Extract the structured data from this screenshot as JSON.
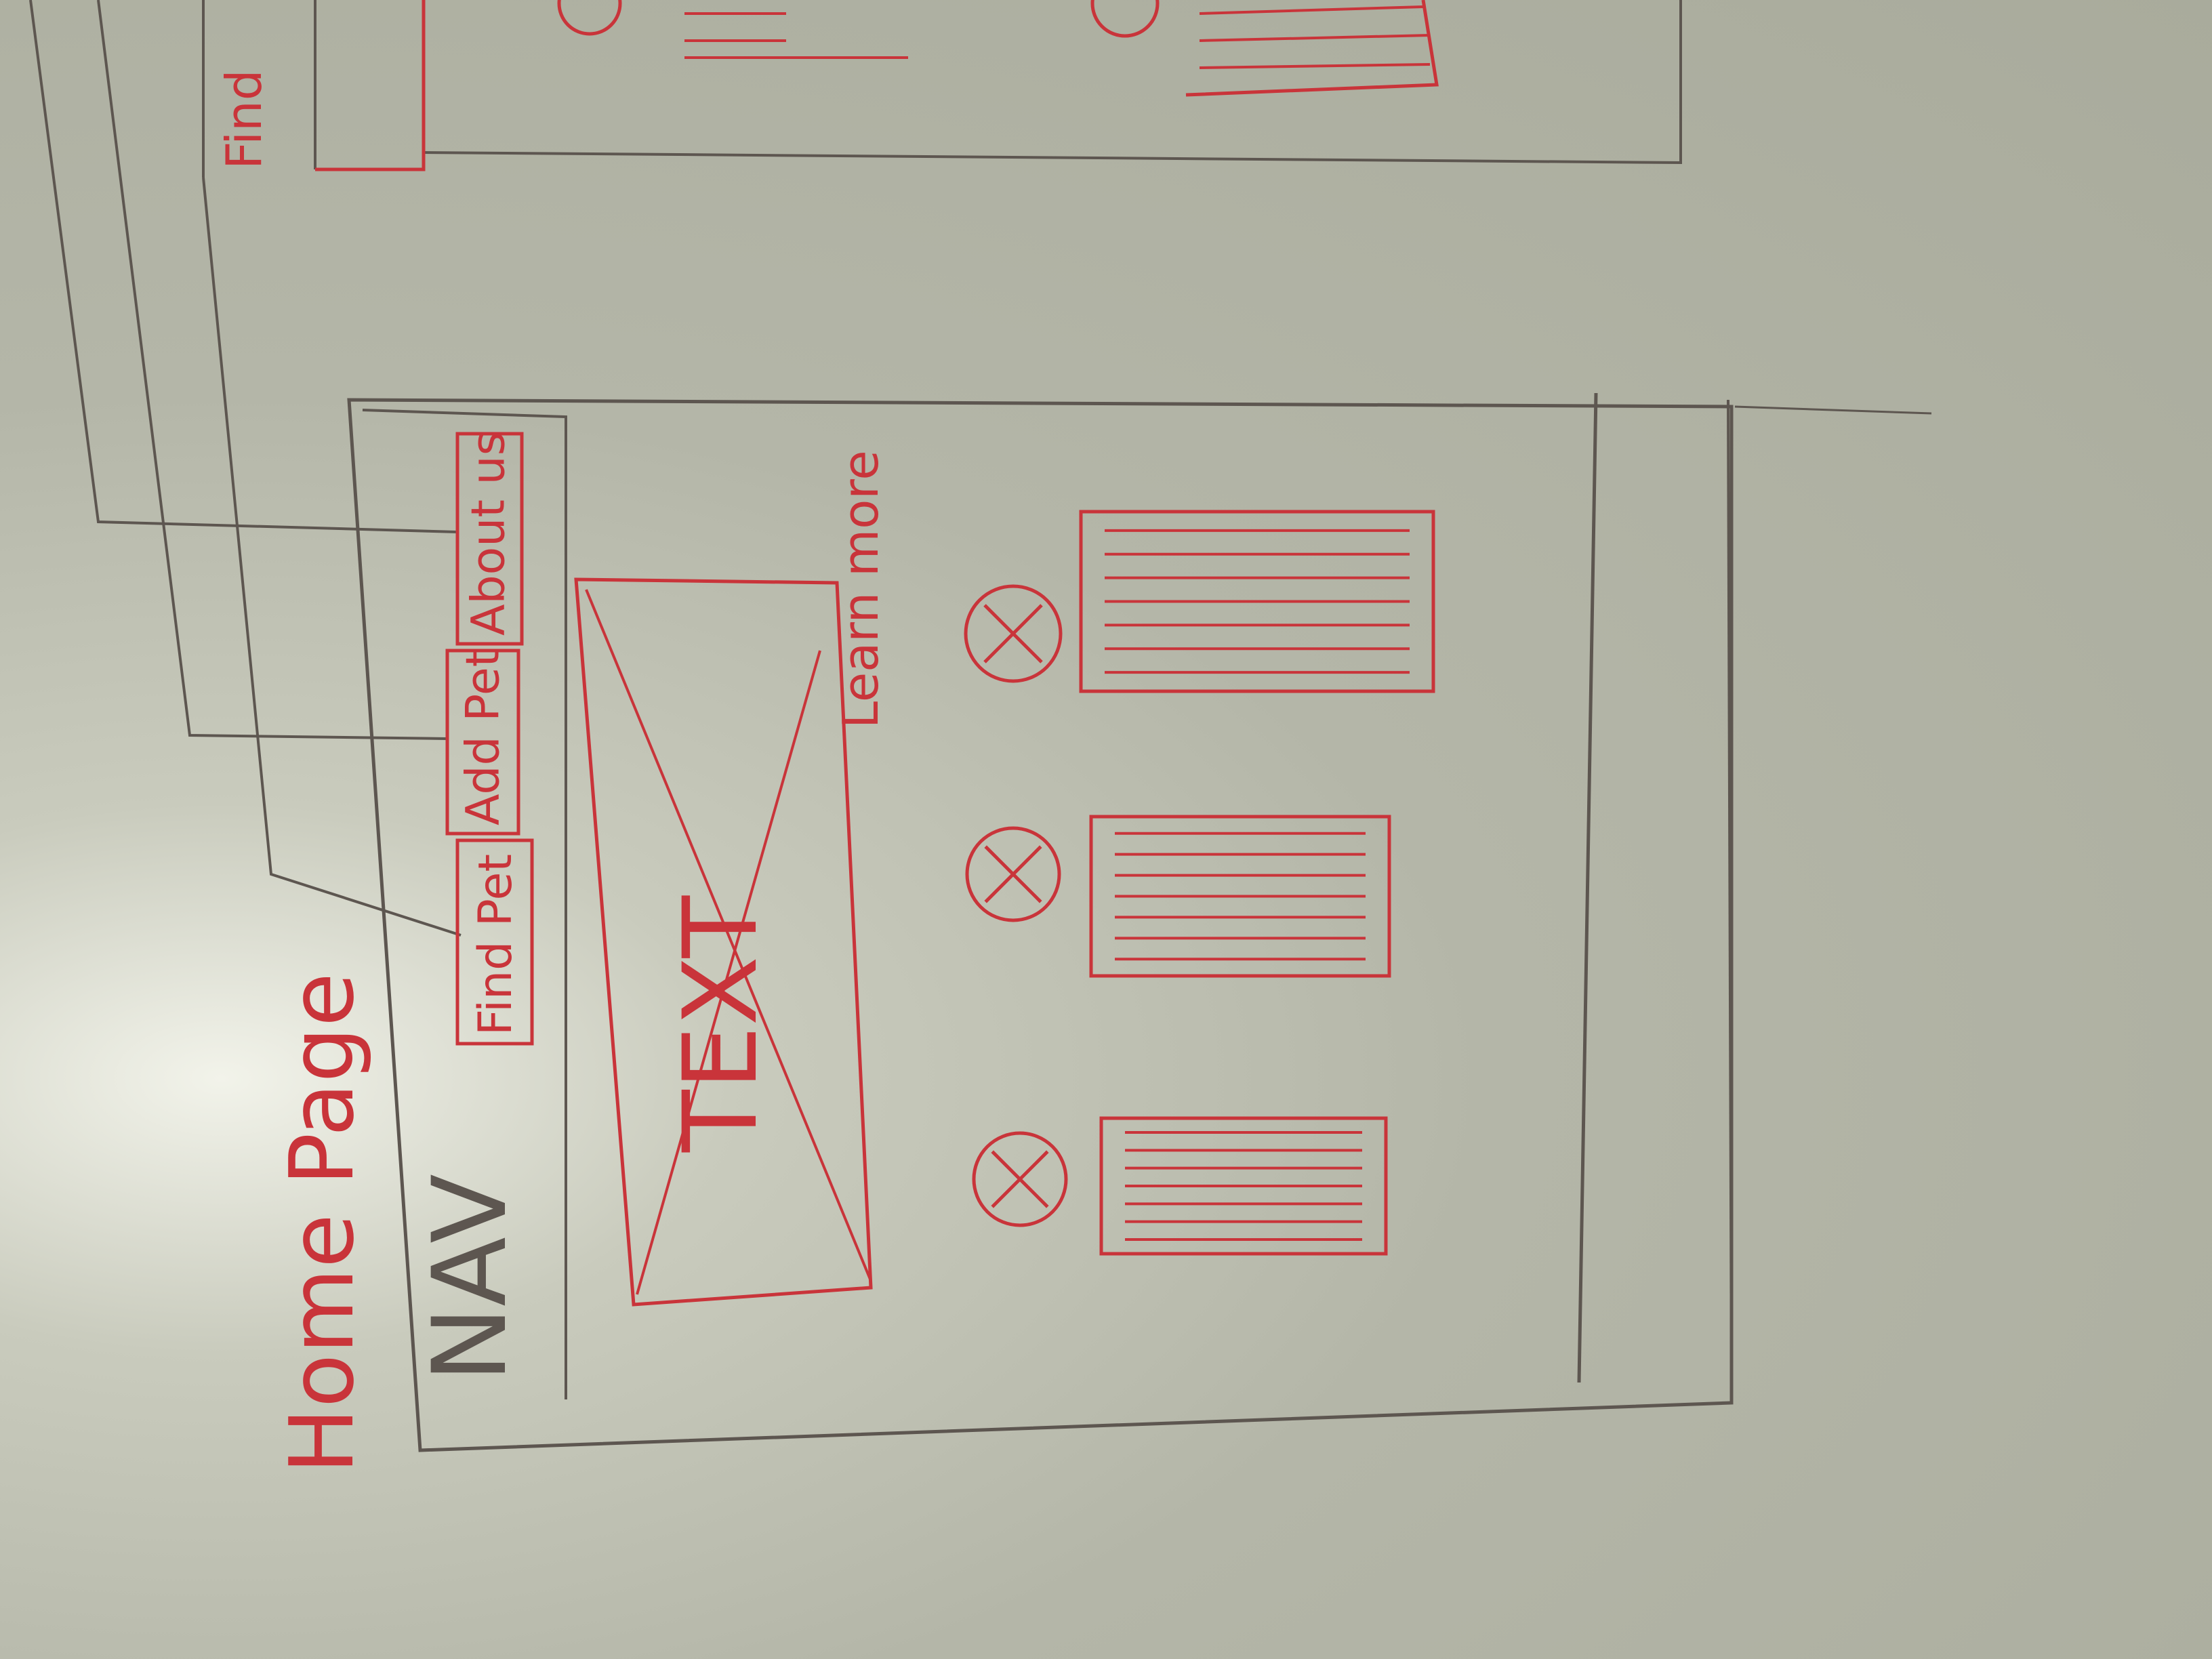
{
  "page_title": "Home Page",
  "nav": {
    "label": "NAV",
    "links": [
      {
        "label": "Find Pet"
      },
      {
        "label": "Add Pet"
      },
      {
        "label": "About us"
      }
    ]
  },
  "hero": {
    "text": "TEXT",
    "link_label": "Learn more"
  },
  "neighbor_frame": {
    "label": "Find"
  },
  "colors": {
    "paper": "#b4b6a8",
    "pencil": "#5d5650",
    "red_pen": "#c9343a"
  },
  "icons": {
    "feature_icon": "circle-x-icon",
    "placeholder": "crossed-box-placeholder"
  }
}
